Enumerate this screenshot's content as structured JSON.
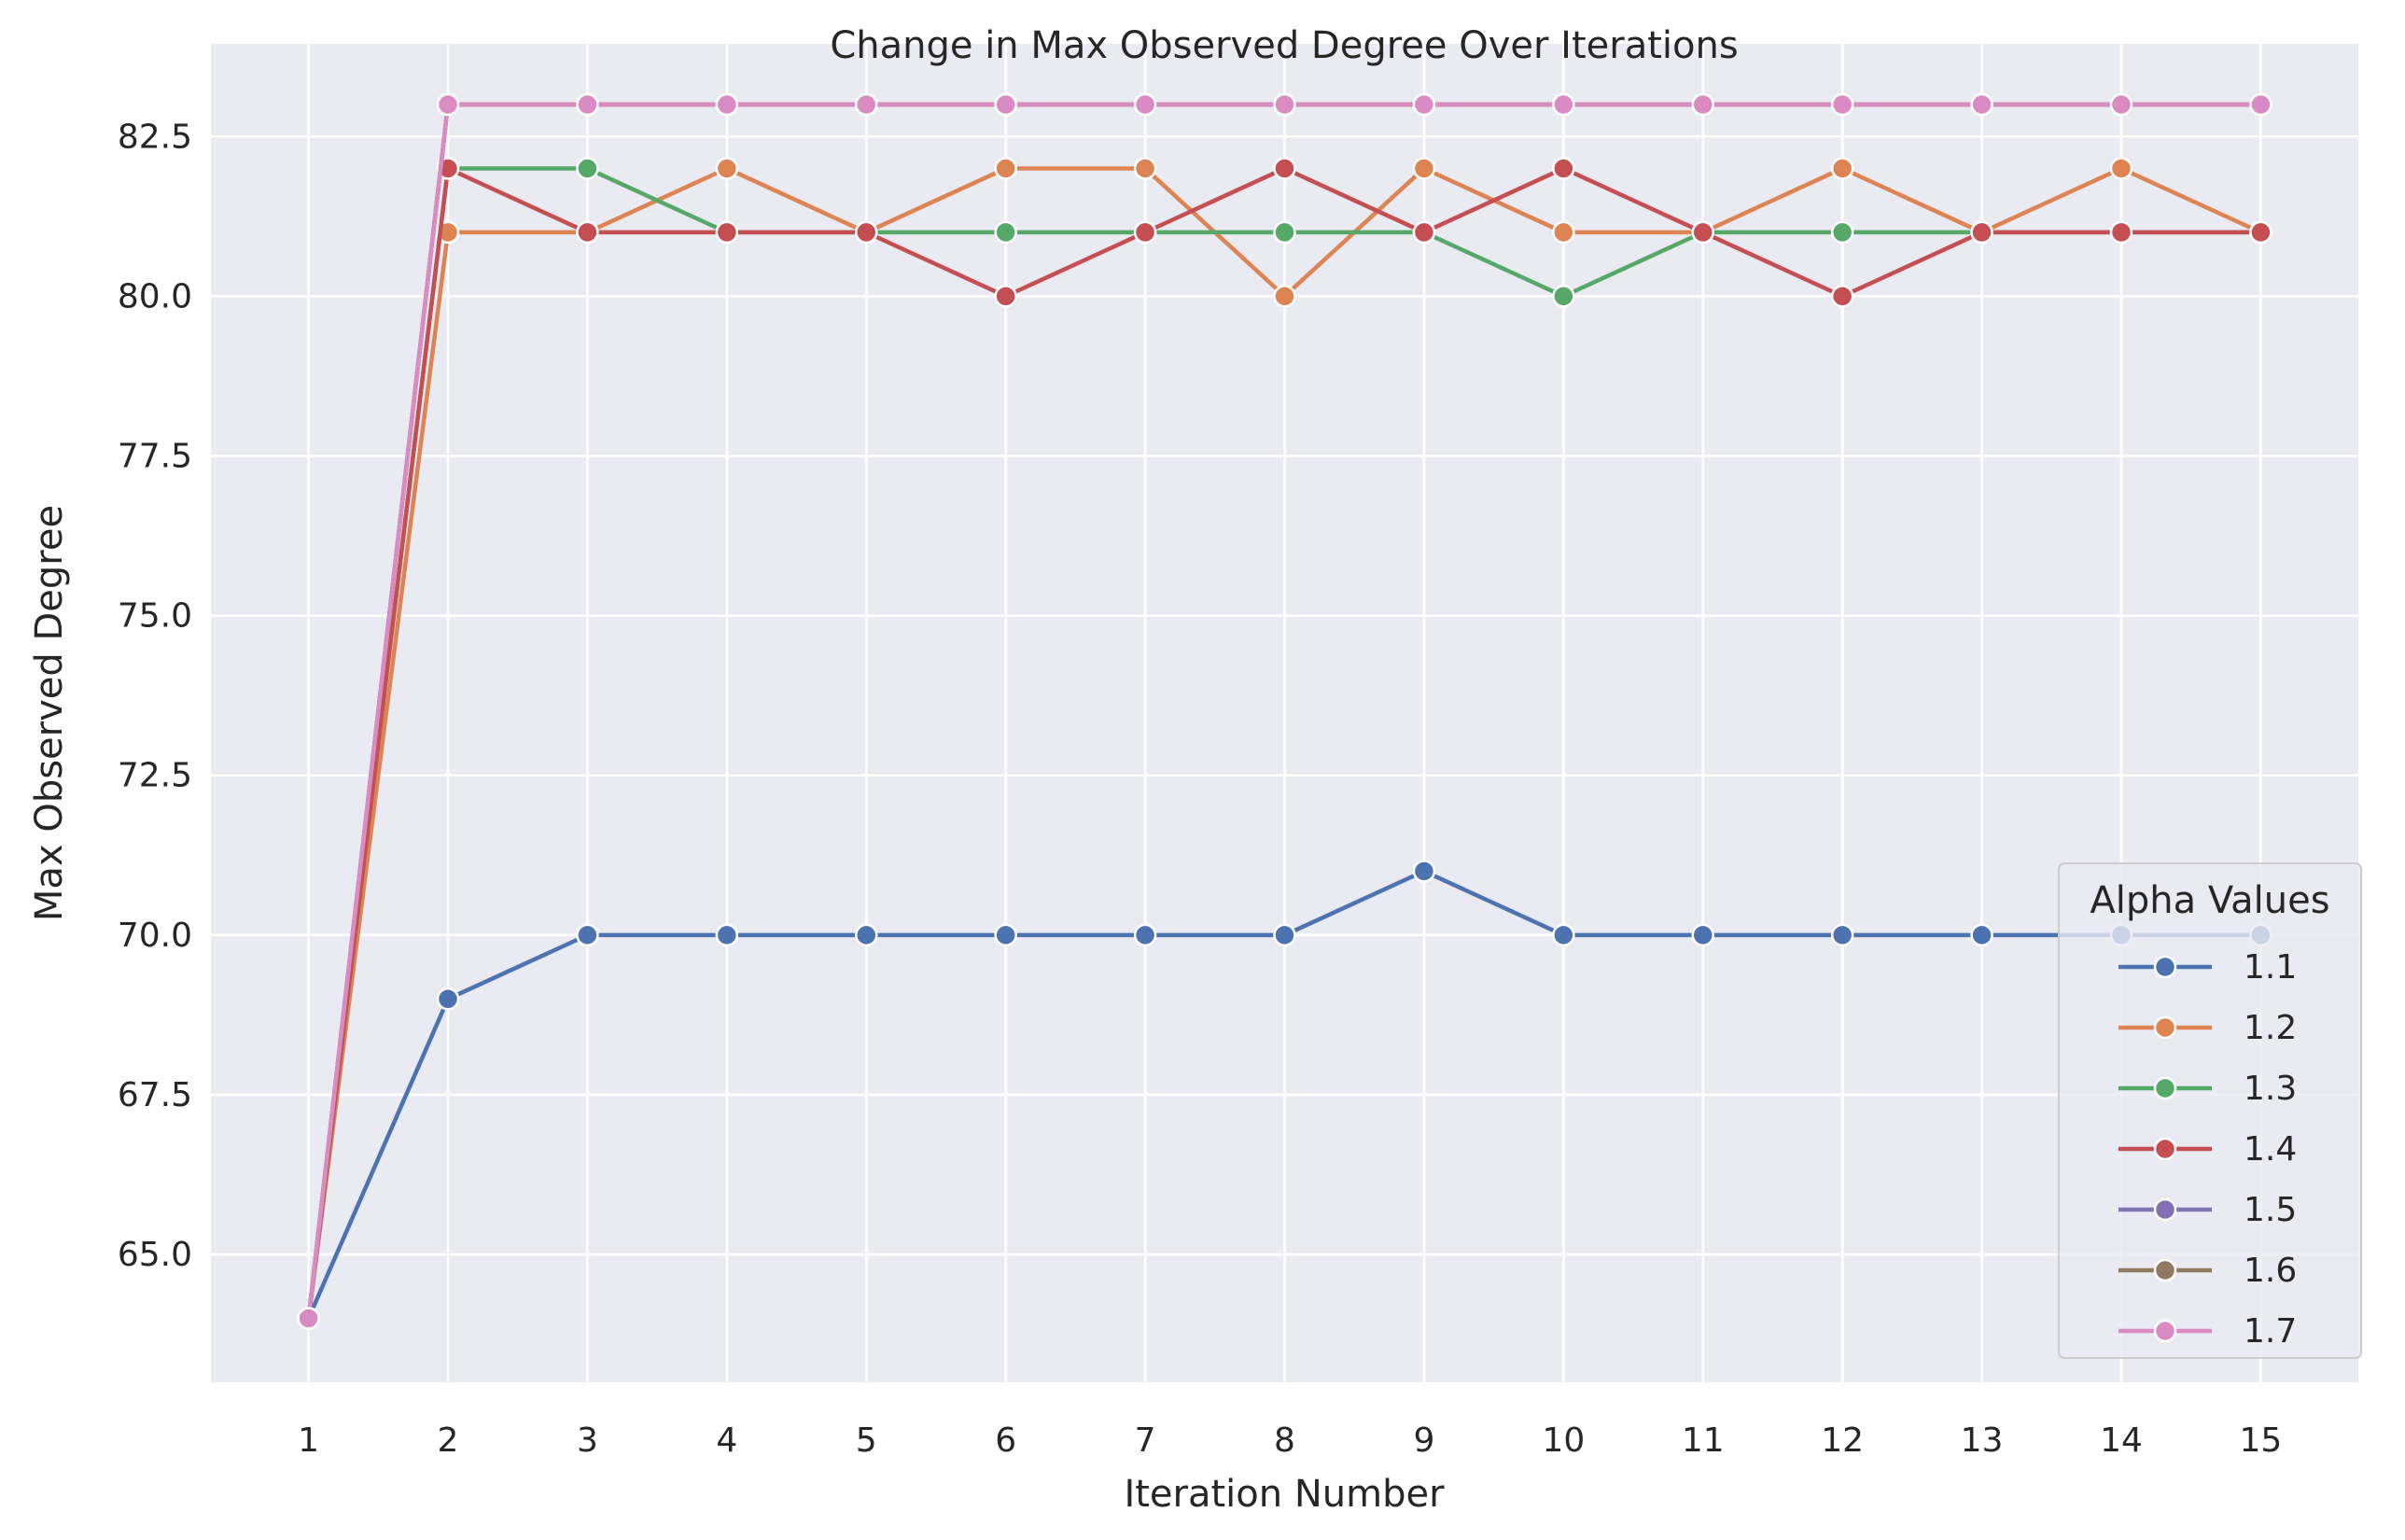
{
  "chart_data": {
    "type": "line",
    "title": "Change in Max Observed Degree Over Iterations",
    "xlabel": "Iteration Number",
    "ylabel": "Max Observed Degree",
    "x": [
      1,
      2,
      3,
      4,
      5,
      6,
      7,
      8,
      9,
      10,
      11,
      12,
      13,
      14,
      15
    ],
    "xlim": [
      0.3,
      15.7
    ],
    "ylim": [
      63.0,
      83.95
    ],
    "yticks": [
      65.0,
      67.5,
      70.0,
      72.5,
      75.0,
      77.5,
      80.0,
      82.5
    ],
    "ytick_labels": [
      "65.0",
      "67.5",
      "70.0",
      "72.5",
      "75.0",
      "77.5",
      "80.0",
      "82.5"
    ],
    "xtick_labels": [
      "1",
      "2",
      "3",
      "4",
      "5",
      "6",
      "7",
      "8",
      "9",
      "10",
      "11",
      "12",
      "13",
      "14",
      "15"
    ],
    "grid": true,
    "background": "#eaeaf2",
    "legend": {
      "title": "Alpha Values",
      "placement": "lower-right"
    },
    "series": [
      {
        "name": "1.1",
        "color": "#4c72b0",
        "values": [
          64,
          69,
          70,
          70,
          70,
          70,
          70,
          70,
          71,
          70,
          70,
          70,
          70,
          70,
          70
        ]
      },
      {
        "name": "1.2",
        "color": "#dd8452",
        "values": [
          64,
          81,
          81,
          82,
          81,
          82,
          82,
          80,
          82,
          81,
          81,
          82,
          81,
          82,
          81
        ]
      },
      {
        "name": "1.3",
        "color": "#55a868",
        "values": [
          64,
          82,
          82,
          81,
          81,
          81,
          81,
          81,
          81,
          80,
          81,
          81,
          81,
          81,
          81
        ]
      },
      {
        "name": "1.4",
        "color": "#c44e52",
        "values": [
          64,
          82,
          81,
          81,
          81,
          80,
          81,
          82,
          81,
          82,
          81,
          80,
          81,
          81,
          81
        ]
      },
      {
        "name": "1.5",
        "color": "#8172b3",
        "values": [
          64,
          83,
          83,
          83,
          83,
          83,
          83,
          83,
          83,
          83,
          83,
          83,
          83,
          83,
          83
        ]
      },
      {
        "name": "1.6",
        "color": "#937860",
        "values": [
          64,
          83,
          83,
          83,
          83,
          83,
          83,
          83,
          83,
          83,
          83,
          83,
          83,
          83,
          83
        ]
      },
      {
        "name": "1.7",
        "color": "#da8bc3",
        "values": [
          64,
          83,
          83,
          83,
          83,
          83,
          83,
          83,
          83,
          83,
          83,
          83,
          83,
          83,
          83
        ]
      }
    ]
  }
}
